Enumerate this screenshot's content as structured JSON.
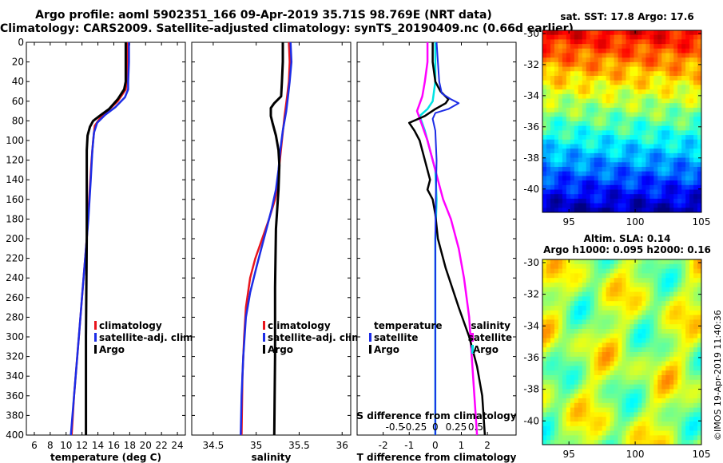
{
  "header": {
    "line1": "Argo profile: aoml 5902351_166 09-Apr-2019 35.71S 98.769E (NRT data)",
    "line2": "Climatology: CARS2009. Satellite-adjusted climatology: synTS_20190409.nc (0.66d earlier)"
  },
  "colors": {
    "climatology": "#e8141c",
    "satellite": "#1c2ce6",
    "argo": "#000000",
    "s_satellite": "#ff00ff",
    "t_satellite": "#00e4e4"
  },
  "sst_panel": {
    "title": "sat. SST: 17.8 Argo: 17.6"
  },
  "sla_panel": {
    "title_line1": "Altim. SLA: 0.14",
    "title_line2": "Argo h1000: 0.095 h2000: 0.16"
  },
  "watermark": "©IMOS 19-Apr-2019 11:40:36",
  "chart_data": [
    {
      "type": "line",
      "id": "temperature",
      "xlabel": "temperature (deg C)",
      "ylabel": "",
      "xlim": [
        5,
        25
      ],
      "ylim": [
        400,
        0
      ],
      "xticks": [
        6,
        8,
        10,
        12,
        14,
        16,
        18,
        20,
        22,
        24
      ],
      "yticks": [
        0,
        20,
        40,
        60,
        80,
        100,
        120,
        140,
        160,
        180,
        200,
        220,
        240,
        260,
        280,
        300,
        320,
        340,
        360,
        380,
        400
      ],
      "legend": [
        "climatology",
        "satellite-adj. clim.",
        "Argo"
      ],
      "series": [
        {
          "name": "climatology",
          "points": [
            [
              17.7,
              0
            ],
            [
              17.7,
              20
            ],
            [
              17.6,
              40
            ],
            [
              17.5,
              48
            ],
            [
              16.5,
              60
            ],
            [
              15.2,
              70
            ],
            [
              14.2,
              78
            ],
            [
              13.6,
              85
            ],
            [
              13.4,
              100
            ],
            [
              13.2,
              120
            ],
            [
              12.9,
              160
            ],
            [
              12.6,
              200
            ],
            [
              12.2,
              240
            ],
            [
              11.8,
              280
            ],
            [
              11.4,
              320
            ],
            [
              11.0,
              360
            ],
            [
              10.7,
              400
            ]
          ]
        },
        {
          "name": "satellite-adj. clim.",
          "points": [
            [
              17.9,
              0
            ],
            [
              17.9,
              20
            ],
            [
              17.8,
              40
            ],
            [
              17.8,
              48
            ],
            [
              17.4,
              56
            ],
            [
              16.2,
              66
            ],
            [
              14.9,
              74
            ],
            [
              13.9,
              82
            ],
            [
              13.5,
              92
            ],
            [
              13.3,
              110
            ],
            [
              13.1,
              140
            ],
            [
              12.8,
              180
            ],
            [
              12.4,
              220
            ],
            [
              12.0,
              260
            ],
            [
              11.6,
              300
            ],
            [
              11.2,
              340
            ],
            [
              10.8,
              380
            ],
            [
              10.6,
              400
            ]
          ]
        },
        {
          "name": "Argo",
          "points": [
            [
              17.5,
              0
            ],
            [
              17.5,
              20
            ],
            [
              17.5,
              40
            ],
            [
              17.3,
              48
            ],
            [
              16.5,
              58
            ],
            [
              15.4,
              68
            ],
            [
              14.2,
              75
            ],
            [
              13.4,
              80
            ],
            [
              13.0,
              86
            ],
            [
              12.7,
              95
            ],
            [
              12.6,
              110
            ],
            [
              12.6,
              200
            ],
            [
              12.5,
              300
            ],
            [
              12.5,
              400
            ]
          ]
        }
      ]
    },
    {
      "type": "line",
      "id": "salinity",
      "xlabel": "salinity",
      "ylabel": "",
      "xlim": [
        34.25,
        36.1
      ],
      "ylim": [
        400,
        0
      ],
      "xticks": [
        34.5,
        35,
        35.5,
        36
      ],
      "yticks": [
        0,
        20,
        40,
        60,
        80,
        100,
        120,
        140,
        160,
        180,
        200,
        220,
        240,
        260,
        280,
        300,
        320,
        340,
        360,
        380,
        400
      ],
      "legend": [
        "climatology",
        "satellite-adj. clim.",
        "Argo"
      ],
      "series": [
        {
          "name": "climatology",
          "points": [
            [
              35.38,
              0
            ],
            [
              35.39,
              20
            ],
            [
              35.38,
              40
            ],
            [
              35.36,
              55
            ],
            [
              35.33,
              75
            ],
            [
              35.3,
              100
            ],
            [
              35.27,
              125
            ],
            [
              35.25,
              145
            ],
            [
              35.22,
              160
            ],
            [
              35.15,
              180
            ],
            [
              35.07,
              200
            ],
            [
              34.99,
              220
            ],
            [
              34.93,
              240
            ],
            [
              34.88,
              270
            ],
            [
              34.86,
              300
            ],
            [
              34.84,
              340
            ],
            [
              34.83,
              400
            ]
          ]
        },
        {
          "name": "satellite-adj. clim.",
          "points": [
            [
              35.4,
              0
            ],
            [
              35.41,
              20
            ],
            [
              35.39,
              40
            ],
            [
              35.37,
              55
            ],
            [
              35.35,
              70
            ],
            [
              35.31,
              90
            ],
            [
              35.28,
              110
            ],
            [
              35.26,
              130
            ],
            [
              35.23,
              150
            ],
            [
              35.18,
              170
            ],
            [
              35.12,
              190
            ],
            [
              35.06,
              210
            ],
            [
              35.0,
              230
            ],
            [
              34.93,
              255
            ],
            [
              34.88,
              280
            ],
            [
              34.85,
              320
            ],
            [
              34.83,
              360
            ],
            [
              34.82,
              400
            ]
          ]
        },
        {
          "name": "Argo",
          "points": [
            [
              35.31,
              0
            ],
            [
              35.31,
              20
            ],
            [
              35.3,
              40
            ],
            [
              35.29,
              55
            ],
            [
              35.21,
              62
            ],
            [
              35.17,
              67
            ],
            [
              35.17,
              75
            ],
            [
              35.19,
              82
            ],
            [
              35.23,
              95
            ],
            [
              35.26,
              110
            ],
            [
              35.27,
              125
            ],
            [
              35.26,
              150
            ],
            [
              35.23,
              190
            ],
            [
              35.22,
              250
            ],
            [
              35.22,
              320
            ],
            [
              35.21,
              400
            ]
          ]
        }
      ]
    },
    {
      "type": "line",
      "id": "difference",
      "xlabel": "T difference from climatology",
      "x2label": "S difference from climatology",
      "xlim": [
        -3.0,
        3.1
      ],
      "ylim": [
        400,
        0
      ],
      "xticks": [
        -2,
        -1,
        0,
        1,
        2
      ],
      "x2ticks": [
        "-0.5",
        "-0.25",
        "0",
        "0.25",
        "0.5"
      ],
      "yticks": [
        0,
        20,
        40,
        60,
        80,
        100,
        120,
        140,
        160,
        180,
        200,
        220,
        240,
        260,
        280,
        300,
        320,
        340,
        360,
        380,
        400
      ],
      "legend_left": [
        "temperature",
        "satellite",
        "Argo"
      ],
      "legend_right": [
        "salinity",
        "satellite",
        "Argo"
      ],
      "series": [
        {
          "name": "T satellite",
          "points": [
            [
              0.05,
              0
            ],
            [
              0.1,
              20
            ],
            [
              0.15,
              40
            ],
            [
              0.25,
              52
            ],
            [
              0.6,
              58
            ],
            [
              0.9,
              62
            ],
            [
              0.5,
              68
            ],
            [
              0.0,
              72
            ],
            [
              -0.1,
              78
            ],
            [
              0.0,
              90
            ],
            [
              0.05,
              120
            ],
            [
              0.02,
              160
            ],
            [
              0.0,
              200
            ],
            [
              0.0,
              260
            ],
            [
              0.0,
              320
            ],
            [
              0.0,
              400
            ]
          ]
        },
        {
          "name": "T Argo",
          "points": [
            [
              -0.1,
              0
            ],
            [
              -0.1,
              20
            ],
            [
              0.0,
              40
            ],
            [
              0.2,
              50
            ],
            [
              0.5,
              58
            ],
            [
              0.4,
              62
            ],
            [
              0.0,
              68
            ],
            [
              -0.4,
              75
            ],
            [
              -1.0,
              82
            ],
            [
              -0.8,
              90
            ],
            [
              -0.6,
              100
            ],
            [
              -0.4,
              120
            ],
            [
              -0.2,
              140
            ],
            [
              -0.3,
              150
            ],
            [
              -0.1,
              160
            ],
            [
              0.0,
              175
            ],
            [
              0.1,
              200
            ],
            [
              0.4,
              230
            ],
            [
              0.9,
              270
            ],
            [
              1.3,
              300
            ],
            [
              1.6,
              330
            ],
            [
              1.8,
              360
            ],
            [
              1.9,
              400
            ]
          ]
        },
        {
          "name": "S satellite",
          "points": [
            [
              -0.3,
              0
            ],
            [
              -0.3,
              20
            ],
            [
              -0.4,
              40
            ],
            [
              -0.5,
              55
            ],
            [
              -0.7,
              70
            ],
            [
              -0.5,
              85
            ],
            [
              -0.3,
              100
            ],
            [
              -0.1,
              120
            ],
            [
              0.1,
              140
            ],
            [
              0.3,
              160
            ],
            [
              0.6,
              180
            ],
            [
              0.9,
              210
            ],
            [
              1.1,
              240
            ],
            [
              1.3,
              280
            ],
            [
              1.4,
              320
            ],
            [
              1.5,
              360
            ],
            [
              1.6,
              400
            ]
          ]
        },
        {
          "name": "S Argo",
          "points": [
            [
              0.0,
              0
            ],
            [
              0.0,
              40
            ],
            [
              -0.1,
              60
            ],
            [
              -0.3,
              68
            ],
            [
              -0.6,
              75
            ],
            [
              -0.4,
              90
            ],
            [
              -0.2,
              110
            ],
            [
              0.0,
              130
            ],
            [
              0.05,
              160
            ],
            [
              0.0,
              200
            ],
            [
              0.0,
              300
            ],
            [
              0.0,
              400
            ]
          ]
        }
      ]
    },
    {
      "type": "heatmap",
      "id": "sst_map",
      "xticks": [
        95,
        100,
        105
      ],
      "yticks": [
        -30,
        -32,
        -34,
        -36,
        -38,
        -40
      ],
      "xlim": [
        93,
        105
      ],
      "ylim": [
        -41.5,
        -29.8
      ]
    },
    {
      "type": "heatmap",
      "id": "sla_map",
      "xticks": [
        95,
        100,
        105
      ],
      "yticks": [
        -30,
        -32,
        -34,
        -36,
        -38,
        -40
      ],
      "xlim": [
        93,
        105
      ],
      "ylim": [
        -41.5,
        -29.8
      ]
    }
  ]
}
